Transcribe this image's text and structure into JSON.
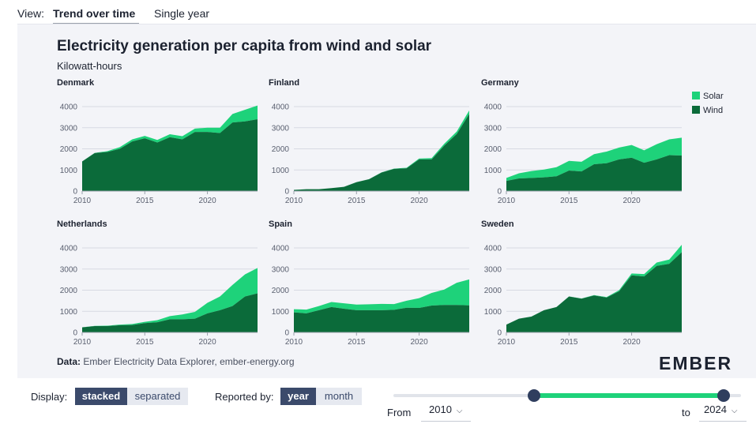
{
  "view": {
    "label": "View:",
    "tabs": [
      {
        "label": "Trend over time",
        "active": true
      },
      {
        "label": "Single year",
        "active": false
      }
    ]
  },
  "chart": {
    "title": "Electricity generation per capita from wind and solar",
    "subtitle": "Kilowatt-hours"
  },
  "legend": {
    "solar": {
      "label": "Solar",
      "color": "#1ed27a"
    },
    "wind": {
      "label": "Wind",
      "color": "#0b6b3a"
    }
  },
  "source": {
    "prefix": "Data:",
    "text": "Ember Electricity Data Explorer, ember-energy.org"
  },
  "logo": "EMBER",
  "controls": {
    "display_label": "Display:",
    "display_options": [
      "stacked",
      "separated"
    ],
    "display_selected": "stacked",
    "reported_label": "Reported by:",
    "reported_options": [
      "year",
      "month"
    ],
    "reported_selected": "year",
    "from_label": "From",
    "from_value": "2010",
    "to_label": "to",
    "to_value": "2024",
    "range_start": 2010,
    "range_end": 2024
  },
  "chart_data": {
    "type": "area",
    "stacked": true,
    "unit": "Kilowatt-hours",
    "x": [
      2010,
      2011,
      2012,
      2013,
      2014,
      2015,
      2016,
      2017,
      2018,
      2019,
      2020,
      2021,
      2022,
      2023,
      2024
    ],
    "xticks": [
      "2010",
      "2015",
      "2020"
    ],
    "yticks": [
      "0",
      "1000",
      "2000",
      "3000",
      "4000"
    ],
    "ylim": [
      0,
      4000
    ],
    "series_names": [
      "Wind",
      "Solar"
    ],
    "panels": [
      {
        "country": "Denmark",
        "wind": [
          1400,
          1800,
          1850,
          2000,
          2350,
          2500,
          2300,
          2550,
          2450,
          2800,
          2800,
          2750,
          3250,
          3300,
          3400
        ],
        "solar": [
          5,
          10,
          40,
          80,
          100,
          110,
          120,
          140,
          150,
          160,
          200,
          250,
          400,
          550,
          650
        ]
      },
      {
        "country": "Finland",
        "wind": [
          55,
          90,
          90,
          140,
          200,
          420,
          560,
          880,
          1050,
          1080,
          1500,
          1500,
          2150,
          2700,
          3650
        ],
        "solar": [
          1,
          1,
          1,
          2,
          3,
          4,
          5,
          10,
          15,
          25,
          40,
          60,
          90,
          120,
          170
        ]
      },
      {
        "country": "Germany",
        "wind": [
          480,
          600,
          620,
          650,
          700,
          970,
          930,
          1270,
          1320,
          1500,
          1580,
          1340,
          1500,
          1700,
          1680
        ],
        "solar": [
          140,
          240,
          330,
          370,
          430,
          460,
          460,
          480,
          550,
          560,
          600,
          590,
          720,
          750,
          850
        ]
      },
      {
        "country": "Netherlands",
        "wind": [
          240,
          300,
          300,
          340,
          350,
          440,
          480,
          620,
          620,
          650,
          900,
          1050,
          1250,
          1700,
          1850
        ],
        "solar": [
          5,
          10,
          20,
          30,
          45,
          60,
          100,
          150,
          230,
          320,
          500,
          650,
          1000,
          1050,
          1200
        ]
      },
      {
        "country": "Spain",
        "wind": [
          950,
          900,
          1050,
          1200,
          1120,
          1050,
          1050,
          1050,
          1070,
          1170,
          1160,
          1270,
          1300,
          1300,
          1280
        ],
        "solar": [
          150,
          180,
          200,
          240,
          260,
          270,
          280,
          300,
          270,
          330,
          460,
          600,
          730,
          1050,
          1230
        ]
      },
      {
        "country": "Sweden",
        "wind": [
          370,
          650,
          750,
          1050,
          1200,
          1700,
          1600,
          1750,
          1650,
          1950,
          2700,
          2650,
          3150,
          3250,
          3800
        ],
        "solar": [
          0,
          1,
          1,
          2,
          3,
          5,
          8,
          15,
          25,
          50,
          90,
          110,
          160,
          200,
          350
        ]
      }
    ]
  }
}
